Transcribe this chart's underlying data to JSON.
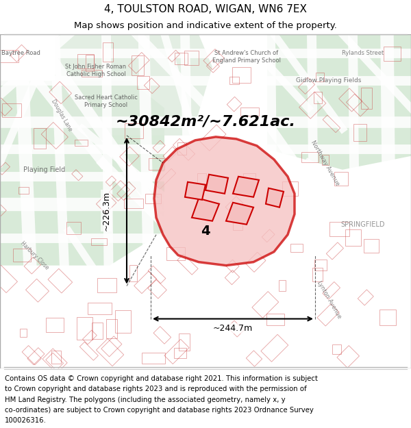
{
  "title_line1": "4, TOULSTON ROAD, WIGAN, WN6 7EX",
  "title_line2": "Map shows position and indicative extent of the property.",
  "area_text": "~30842m²/~7.621ac.",
  "label_number": "4",
  "dim_horizontal": "~244.7m",
  "dim_vertical": "~226.3m",
  "footer_lines": [
    "Contains OS data © Crown copyright and database right 2021. This information is subject",
    "to Crown copyright and database rights 2023 and is reproduced with the permission of",
    "HM Land Registry. The polygons (including the associated geometry, namely x, y",
    "co-ordinates) are subject to Crown copyright and database rights 2023 Ordnance Survey",
    "100026316."
  ],
  "map_bg_color": "#e8e0d8",
  "outline_color": "#cc0000",
  "fill_color": "#f5c0c0",
  "green_area_color": "#d4e8d4",
  "title_fontsize": 11,
  "subtitle_fontsize": 9.5,
  "area_fontsize": 16,
  "footer_fontsize": 7.3,
  "fig_width": 6.0,
  "fig_height": 6.25,
  "dpi": 100
}
